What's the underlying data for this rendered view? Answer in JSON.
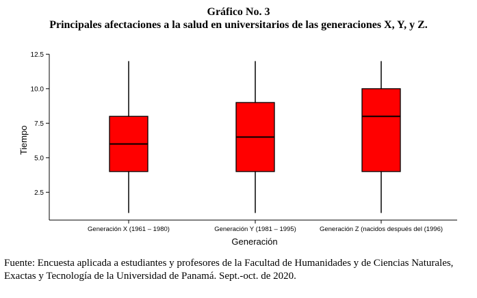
{
  "heading": {
    "line1": "Gráfico No. 3",
    "line2": "Principales afectaciones a la salud en universitarios de las generaciones X, Y, y Z."
  },
  "chart_data": {
    "type": "boxplot",
    "categories": [
      "Generación X (1961 – 1980)",
      "Generación Y (1981 – 1995)",
      "Generación Z (nacidos después del (1996)"
    ],
    "boxes": [
      {
        "min": 1.0,
        "q1": 4.0,
        "median": 6.0,
        "q3": 8.0,
        "max": 12.0
      },
      {
        "min": 1.0,
        "q1": 4.0,
        "median": 6.5,
        "q3": 9.0,
        "max": 12.0
      },
      {
        "min": 1.0,
        "q1": 4.0,
        "median": 8.0,
        "q3": 10.0,
        "max": 12.0
      }
    ],
    "xlabel": "Generación",
    "ylabel": "Tiempo",
    "ylim": [
      0,
      12.5
    ],
    "yticks": [
      "2.5",
      "5.0",
      "7.5",
      "10.0",
      "12.5"
    ],
    "ytick_values": [
      2.5,
      5.0,
      7.5,
      10.0,
      12.5
    ],
    "box_color": "#ff0000",
    "grid": false
  },
  "caption": "Fuente: Encuesta aplicada a estudiantes y profesores de la Facultad de Humanidades y de Ciencias Naturales, Exactas y Tecnología de la Universidad de Panamá. Sept.-oct. de 2020."
}
